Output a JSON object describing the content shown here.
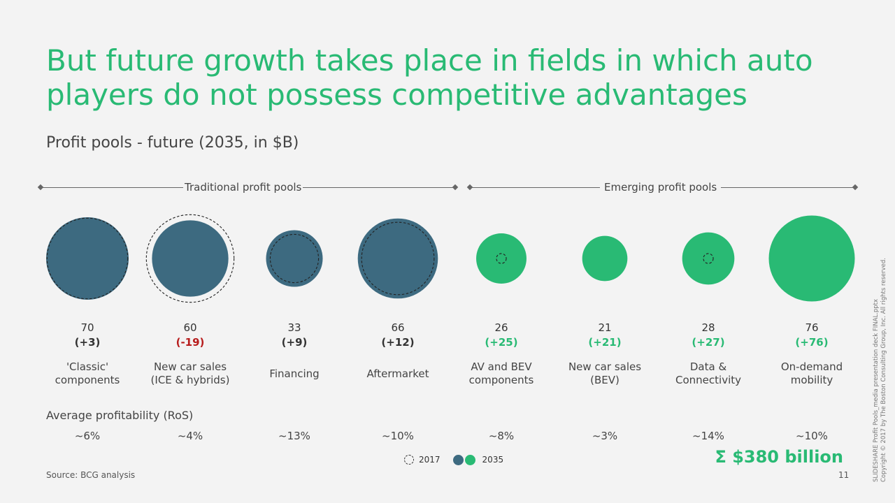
{
  "title": "But future growth takes place in fields in which auto players do not possess competitive advantages",
  "subtitle": "Profit pools - future (2035, in $B)",
  "groups": {
    "traditional": "Traditional profit pools",
    "emerging": "Emerging profit pools"
  },
  "colors": {
    "traditional": "#3d6a80",
    "emerging": "#29ba74",
    "delta_positive_traditional": "#333333",
    "delta_negative": "#b71c1c",
    "delta_positive_emerging": "#29ba74",
    "title": "#29ba74"
  },
  "chart_data": {
    "type": "bubble",
    "size_encodes": "2035 profit pool ($B); dashed outline = 2017",
    "categories": [
      "'Classic' components",
      "New car sales (ICE & hybrids)",
      "Financing",
      "Aftermarket",
      "AV and BEV components",
      "New car sales (BEV)",
      "Data & Connectivity",
      "On-demand mobility"
    ],
    "series": [
      {
        "name": "2035",
        "values": [
          70,
          60,
          33,
          66,
          26,
          21,
          28,
          76
        ]
      },
      {
        "name": "2017",
        "values": [
          67,
          79,
          24,
          54,
          1,
          0,
          1,
          0
        ]
      }
    ],
    "group": [
      "traditional",
      "traditional",
      "traditional",
      "traditional",
      "emerging",
      "emerging",
      "emerging",
      "emerging"
    ]
  },
  "columns": [
    {
      "value": "70",
      "delta": "(+3)",
      "delta_type": "neutral",
      "label": "'Classic'\ncomponents",
      "ros": "~6%"
    },
    {
      "value": "60",
      "delta": "(-19)",
      "delta_type": "negative",
      "label": "New car sales\n(ICE & hybrids)",
      "ros": "~4%"
    },
    {
      "value": "33",
      "delta": "(+9)",
      "delta_type": "neutral",
      "label": "Financing",
      "ros": "~13%"
    },
    {
      "value": "66",
      "delta": "(+12)",
      "delta_type": "neutral",
      "label": "Aftermarket",
      "ros": "~10%"
    },
    {
      "value": "26",
      "delta": "(+25)",
      "delta_type": "positive",
      "label": "AV and BEV\ncomponents",
      "ros": "~8%"
    },
    {
      "value": "21",
      "delta": "(+21)",
      "delta_type": "positive",
      "label": "New car sales\n(BEV)",
      "ros": "~3%"
    },
    {
      "value": "28",
      "delta": "(+27)",
      "delta_type": "positive",
      "label": "Data &\nConnectivity",
      "ros": "~14%"
    },
    {
      "value": "76",
      "delta": "(+76)",
      "delta_type": "positive",
      "label": "On-demand\nmobility",
      "ros": "~10%"
    }
  ],
  "ros_heading": "Average profitability (RoS)",
  "legend": {
    "y2017": "2017",
    "y2035": "2035"
  },
  "total": "Σ $380 billion",
  "source": "Source: BCG analysis",
  "page_number": "11",
  "side_note": "SLIDESHARE Profit Pools_media presentation deck FINAL.pptx\nCopyright © 2017 by The Boston Consulting Group, Inc. All rights reserved."
}
